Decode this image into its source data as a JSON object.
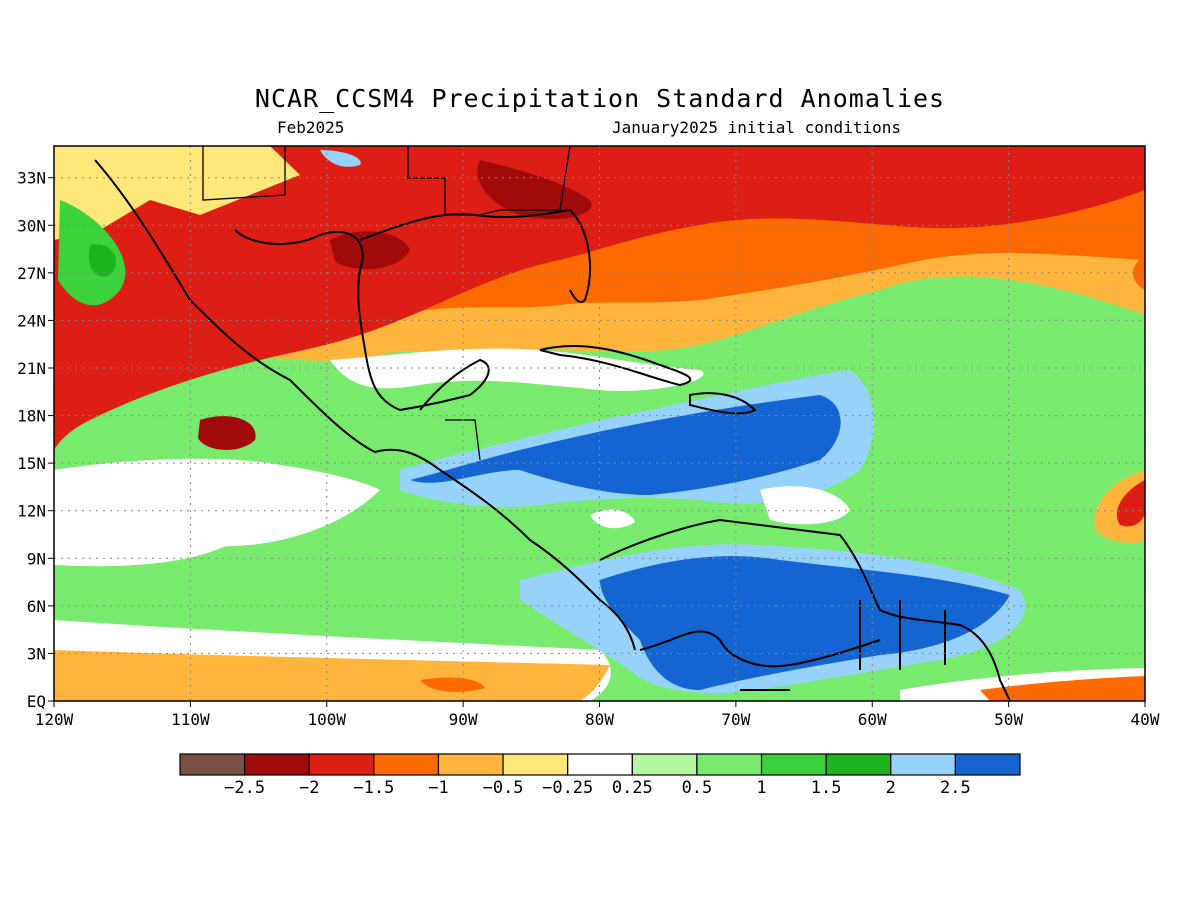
{
  "title": "NCAR_CCSM4 Precipitation Standard Anomalies",
  "subtitle_left": "Feb2025",
  "subtitle_right": "January2025 initial conditions",
  "map": {
    "lon_range": [
      -120,
      -40
    ],
    "lat_range": [
      0,
      35
    ],
    "x_ticks": [
      "120W",
      "110W",
      "100W",
      "90W",
      "80W",
      "70W",
      "60W",
      "50W",
      "40W"
    ],
    "y_ticks": [
      "EQ",
      "3N",
      "6N",
      "9N",
      "12N",
      "15N",
      "18N",
      "21N",
      "24N",
      "27N",
      "30N",
      "33N"
    ],
    "grid": true
  },
  "legend": {
    "colors": [
      "#7a5045",
      "#a00a0a",
      "#dc1e14",
      "#ff6a00",
      "#ffb43c",
      "#ffe678",
      "#ffffff",
      "#b4f5a0",
      "#78eb6e",
      "#3cd23c",
      "#1eb41e",
      "#96d2fa",
      "#1464d2"
    ],
    "labels": [
      "−2.5",
      "−2",
      "−1.5",
      "−1",
      "−0.5",
      "−0.25",
      "0.25",
      "0.5",
      "1",
      "1.5",
      "2",
      "2.5"
    ]
  }
}
